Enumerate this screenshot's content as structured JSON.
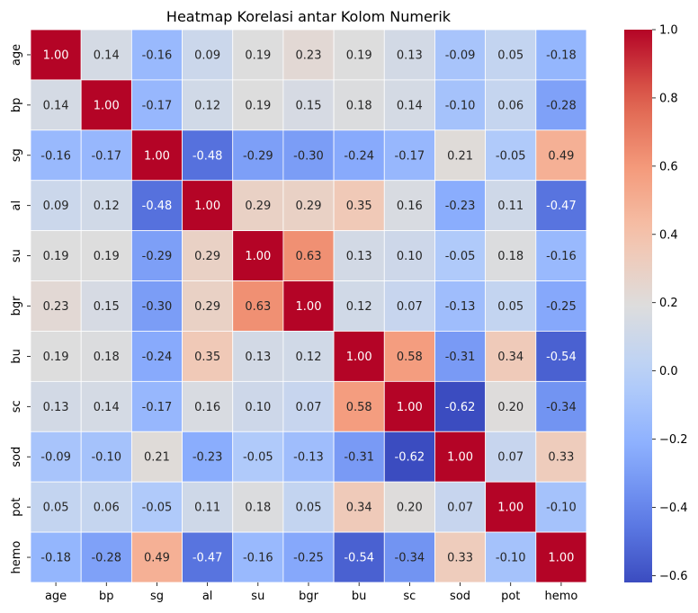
{
  "chart_data": {
    "type": "heatmap",
    "title": "Heatmap Korelasi antar Kolom Numerik",
    "row_labels": [
      "age",
      "bp",
      "sg",
      "al",
      "su",
      "bgr",
      "bu",
      "sc",
      "sod",
      "pot",
      "hemo"
    ],
    "col_labels": [
      "age",
      "bp",
      "sg",
      "al",
      "su",
      "bgr",
      "bu",
      "sc",
      "sod",
      "pot",
      "hemo"
    ],
    "values": [
      [
        1.0,
        0.14,
        -0.16,
        0.09,
        0.19,
        0.23,
        0.19,
        0.13,
        -0.09,
        0.05,
        -0.18
      ],
      [
        0.14,
        1.0,
        -0.17,
        0.12,
        0.19,
        0.15,
        0.18,
        0.14,
        -0.1,
        0.06,
        -0.28
      ],
      [
        -0.16,
        -0.17,
        1.0,
        -0.48,
        -0.29,
        -0.3,
        -0.24,
        -0.17,
        0.21,
        -0.05,
        0.49
      ],
      [
        0.09,
        0.12,
        -0.48,
        1.0,
        0.29,
        0.29,
        0.35,
        0.16,
        -0.23,
        0.11,
        -0.47
      ],
      [
        0.19,
        0.19,
        -0.29,
        0.29,
        1.0,
        0.63,
        0.13,
        0.1,
        -0.05,
        0.18,
        -0.16
      ],
      [
        0.23,
        0.15,
        -0.3,
        0.29,
        0.63,
        1.0,
        0.12,
        0.07,
        -0.13,
        0.05,
        -0.25
      ],
      [
        0.19,
        0.18,
        -0.24,
        0.35,
        0.13,
        0.12,
        1.0,
        0.58,
        -0.31,
        0.34,
        -0.54
      ],
      [
        0.13,
        0.14,
        -0.17,
        0.16,
        0.1,
        0.07,
        0.58,
        1.0,
        -0.62,
        0.2,
        -0.34
      ],
      [
        -0.09,
        -0.1,
        0.21,
        -0.23,
        -0.05,
        -0.13,
        -0.31,
        -0.62,
        1.0,
        0.07,
        0.33
      ],
      [
        0.05,
        0.06,
        -0.05,
        0.11,
        0.18,
        0.05,
        0.34,
        0.2,
        0.07,
        1.0,
        -0.1
      ],
      [
        -0.18,
        -0.28,
        0.49,
        -0.47,
        -0.16,
        -0.25,
        -0.54,
        -0.34,
        0.33,
        -0.1,
        1.0
      ]
    ],
    "colormap": "coolwarm",
    "vmin": -0.62,
    "vmax": 1.0,
    "colorbar_ticks": [
      "1.0",
      "0.8",
      "0.6",
      "0.4",
      "0.2",
      "0.0",
      "−0.2",
      "−0.4",
      "−0.6"
    ],
    "colorbar_tick_values": [
      1.0,
      0.8,
      0.6,
      0.4,
      0.2,
      0.0,
      -0.2,
      -0.4,
      -0.6
    ],
    "annotation_format": "2 decimals",
    "grid": false
  }
}
